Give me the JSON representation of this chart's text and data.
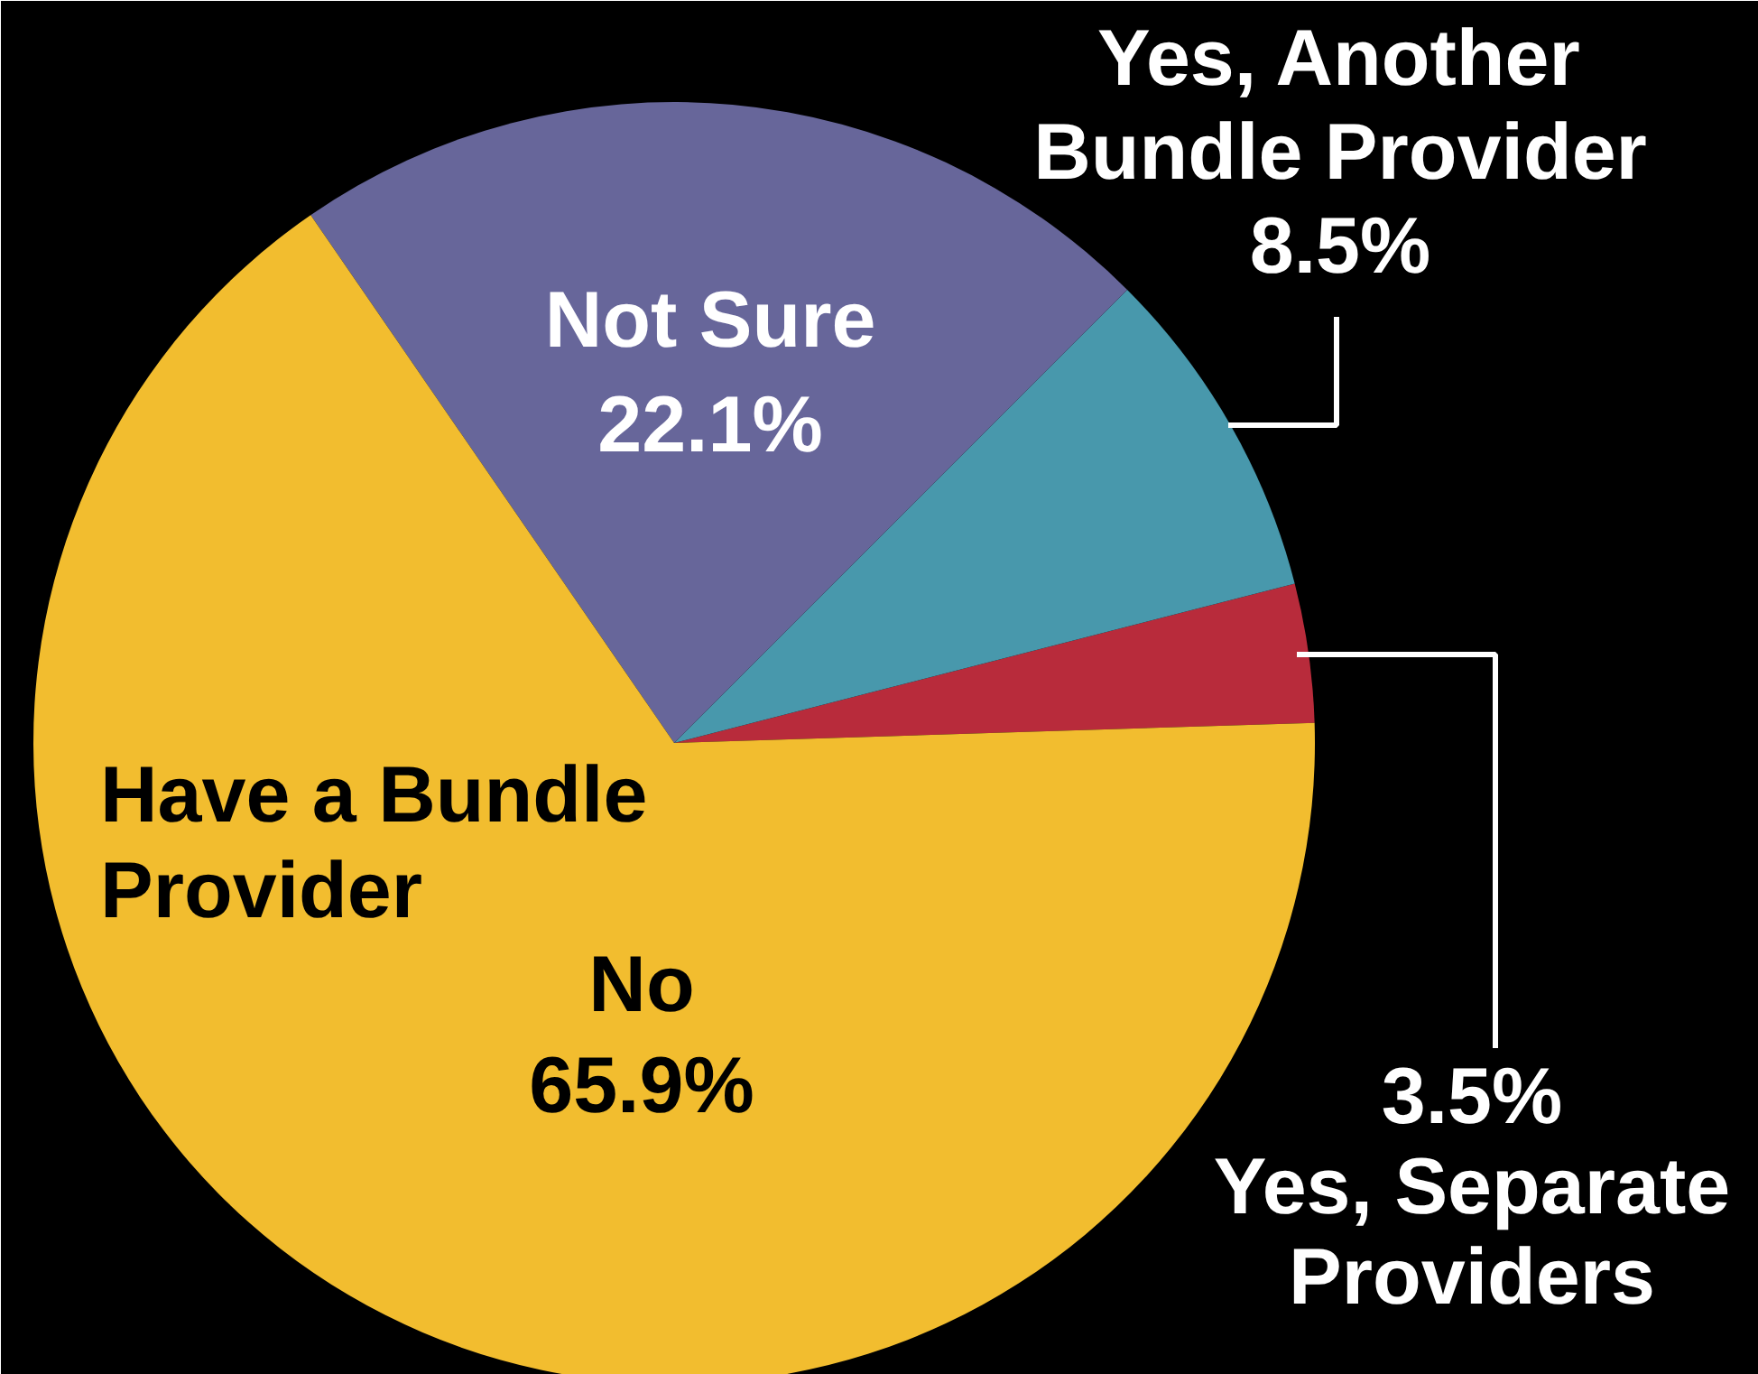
{
  "chart_data": {
    "type": "pie",
    "categories": [
      "Yes, Separate Providers",
      "Yes, Another Bundle Provider",
      "Not Sure",
      "No"
    ],
    "values": [
      3.5,
      8.5,
      22.1,
      65.9
    ],
    "colors": [
      "#b82b3b",
      "#4898ac",
      "#67669a",
      "#f2bd2f"
    ],
    "value_labels": [
      "3.5%",
      "8.5%",
      "22.1%",
      "65.9%"
    ],
    "annotations": [
      "Have a Bundle Provider"
    ]
  }
}
